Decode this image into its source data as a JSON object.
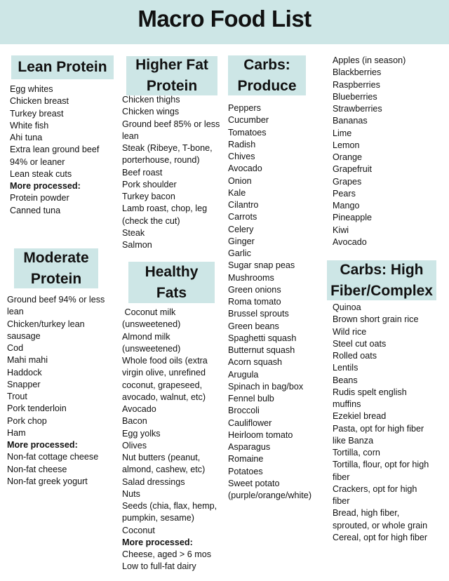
{
  "title": "Macro Food List",
  "sections": {
    "lean": {
      "heading": "Lean Protein",
      "items": [
        {
          "t": "Egg whites"
        },
        {
          "t": "Chicken breast"
        },
        {
          "t": "Turkey breast"
        },
        {
          "t": "White fish"
        },
        {
          "t": "Ahi tuna"
        },
        {
          "t": "Extra lean ground beef"
        },
        {
          "t": "94% or leaner"
        },
        {
          "t": "Lean steak cuts"
        },
        {
          "t": "More processed:",
          "b": true
        },
        {
          "t": "Protein powder"
        },
        {
          "t": "Canned tuna"
        }
      ]
    },
    "higherfat": {
      "heading": "Higher Fat Protein",
      "items": [
        {
          "t": "Chicken thighs"
        },
        {
          "t": "Chicken wings"
        },
        {
          "t": "Ground beef 85% or less"
        },
        {
          "t": "lean"
        },
        {
          "t": "Steak (Ribeye, T-bone,"
        },
        {
          "t": "porterhouse, round)"
        },
        {
          "t": "Beef roast"
        },
        {
          "t": "Pork shoulder"
        },
        {
          "t": "Turkey bacon"
        },
        {
          "t": "Lamb roast, chop, leg"
        },
        {
          "t": "(check the cut)"
        },
        {
          "t": "Steak"
        },
        {
          "t": "Salmon"
        }
      ]
    },
    "produce": {
      "heading": "Carbs: Produce",
      "items": [
        {
          "t": "Peppers"
        },
        {
          "t": "Cucumber"
        },
        {
          "t": "Tomatoes"
        },
        {
          "t": "Radish"
        },
        {
          "t": "Chives"
        },
        {
          "t": "Avocado"
        },
        {
          "t": "Onion"
        },
        {
          "t": "Kale"
        },
        {
          "t": "Cilantro"
        },
        {
          "t": "Carrots"
        },
        {
          "t": "Celery"
        },
        {
          "t": "Ginger"
        },
        {
          "t": "Garlic"
        },
        {
          "t": "Sugar snap peas"
        },
        {
          "t": "Mushrooms"
        },
        {
          "t": "Green onions"
        },
        {
          "t": "Roma tomato"
        },
        {
          "t": "Brussel sprouts"
        },
        {
          "t": "Green beans"
        },
        {
          "t": "Spaghetti squash"
        },
        {
          "t": "Butternut squash"
        },
        {
          "t": "Acorn squash"
        },
        {
          "t": "Arugula"
        },
        {
          "t": "Spinach in bag/box"
        },
        {
          "t": "Fennel bulb"
        },
        {
          "t": "Broccoli"
        },
        {
          "t": "Cauliflower"
        },
        {
          "t": "Heirloom tomato"
        },
        {
          "t": "Asparagus"
        },
        {
          "t": "Romaine"
        },
        {
          "t": "Potatoes"
        },
        {
          "t": "Sweet potato"
        },
        {
          "t": "(purple/orange/white)"
        }
      ]
    },
    "fruit": {
      "items": [
        {
          "t": "Apples (in season)"
        },
        {
          "t": "Blackberries"
        },
        {
          "t": "Raspberries"
        },
        {
          "t": "Blueberries"
        },
        {
          "t": "Strawberries"
        },
        {
          "t": "Bananas"
        },
        {
          "t": "Lime"
        },
        {
          "t": "Lemon"
        },
        {
          "t": "Orange"
        },
        {
          "t": "Grapefruit"
        },
        {
          "t": "Grapes"
        },
        {
          "t": "Pears"
        },
        {
          "t": "Mango"
        },
        {
          "t": "Pineapple"
        },
        {
          "t": "Kiwi"
        },
        {
          "t": "Avocado"
        }
      ]
    },
    "moderate": {
      "heading": "Moderate Protein",
      "items": [
        {
          "t": "Ground beef 94% or less"
        },
        {
          "t": "lean"
        },
        {
          "t": "Chicken/turkey lean"
        },
        {
          "t": "sausage"
        },
        {
          "t": "Cod"
        },
        {
          "t": "Mahi mahi"
        },
        {
          "t": "Haddock"
        },
        {
          "t": "Snapper"
        },
        {
          "t": "Trout"
        },
        {
          "t": "Pork tenderloin"
        },
        {
          "t": "Pork chop"
        },
        {
          "t": "Ham"
        },
        {
          "t": "More processed:",
          "b": true
        },
        {
          "t": "Non-fat cottage cheese"
        },
        {
          "t": "Non-fat cheese"
        },
        {
          "t": "Non-fat greek yogurt"
        }
      ]
    },
    "fats": {
      "heading": "Healthy Fats",
      "items": [
        {
          "t": " Coconut milk"
        },
        {
          "t": "(unsweetened)"
        },
        {
          "t": "Almond milk"
        },
        {
          "t": "(unsweetened)"
        },
        {
          "t": "Whole food oils (extra"
        },
        {
          "t": "virgin olive, unrefined"
        },
        {
          "t": "coconut, grapeseed,"
        },
        {
          "t": "avocado, walnut, etc)"
        },
        {
          "t": "Avocado"
        },
        {
          "t": "Bacon"
        },
        {
          "t": "Egg yolks"
        },
        {
          "t": "Olives"
        },
        {
          "t": "Nut butters (peanut,"
        },
        {
          "t": "almond, cashew, etc)"
        },
        {
          "t": "Salad dressings"
        },
        {
          "t": "Nuts"
        },
        {
          "t": "Seeds (chia, flax, hemp,"
        },
        {
          "t": "pumpkin, sesame)"
        },
        {
          "t": "Coconut"
        },
        {
          "t": "More processed:",
          "b": true
        },
        {
          "t": "Cheese, aged > 6 mos"
        },
        {
          "t": "Low to full-fat dairy"
        }
      ]
    },
    "fiber": {
      "heading": "Carbs: High Fiber/Complex",
      "items": [
        {
          "t": "Quinoa"
        },
        {
          "t": "Brown short grain rice"
        },
        {
          "t": "Wild rice"
        },
        {
          "t": "Steel cut oats"
        },
        {
          "t": "Rolled oats"
        },
        {
          "t": "Lentils"
        },
        {
          "t": "Beans"
        },
        {
          "t": "Rudis spelt english"
        },
        {
          "t": "muffins"
        },
        {
          "t": "Ezekiel bread"
        },
        {
          "t": "Pasta, opt for high fiber"
        },
        {
          "t": "like Banza"
        },
        {
          "t": "Tortilla, corn"
        },
        {
          "t": "Tortilla, flour, opt for high"
        },
        {
          "t": "fiber"
        },
        {
          "t": "Crackers, opt for high"
        },
        {
          "t": "fiber"
        },
        {
          "t": "Bread, high fiber,"
        },
        {
          "t": "sprouted, or whole grain"
        },
        {
          "t": "Cereal, opt for high fiber"
        }
      ]
    }
  }
}
